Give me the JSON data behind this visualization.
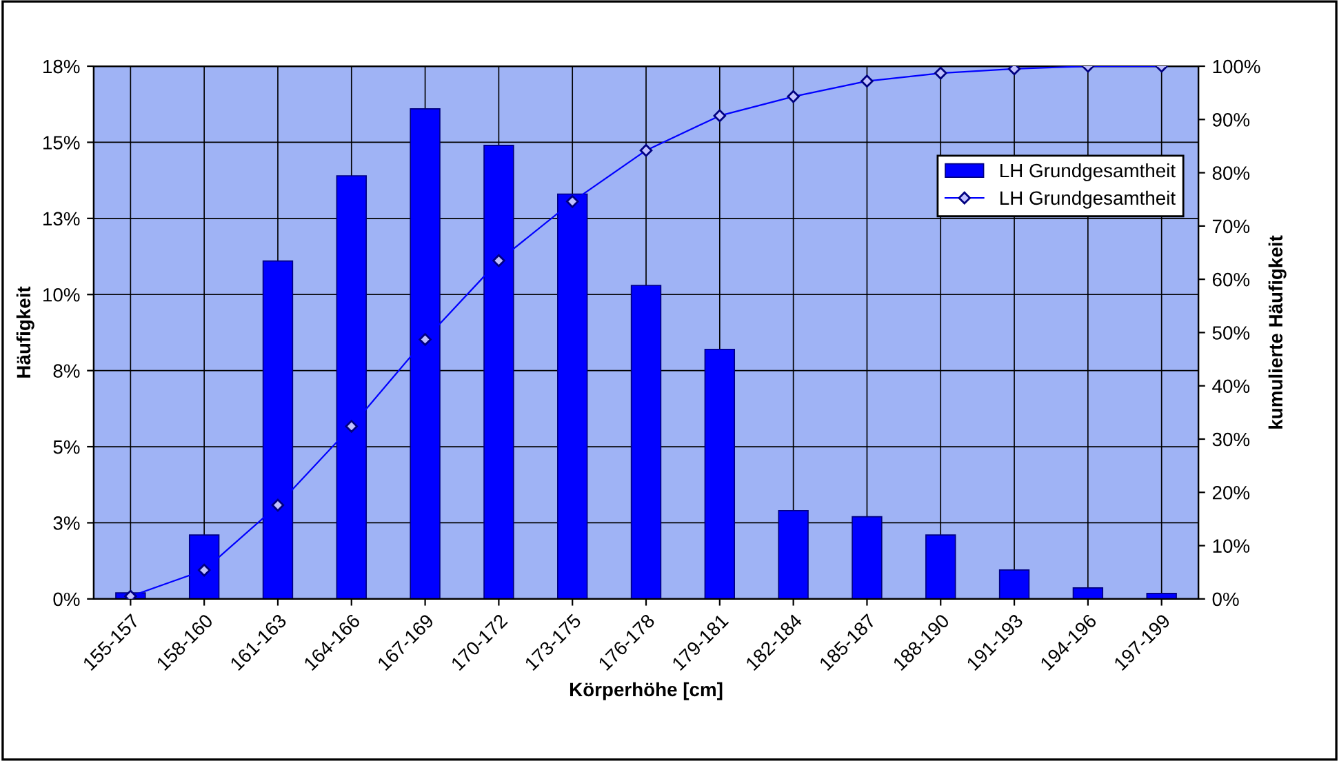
{
  "chart_data": {
    "type": "bar",
    "xlabel": "Körperhöhe [cm]",
    "ylabel": "Häufigkeit",
    "y2label": "kumulierte Häufigkeit",
    "categories": [
      "155-157",
      "158-160",
      "161-163",
      "164-166",
      "167-169",
      "170-172",
      "173-175",
      "176-178",
      "179-181",
      "182-184",
      "185-187",
      "188-190",
      "191-193",
      "194-196",
      "197-199"
    ],
    "series": [
      {
        "name": "LH Grundgesamtheit",
        "color": "#0000ff",
        "values": [
          0.2,
          2.1,
          11.1,
          13.9,
          16.1,
          14.9,
          13.3,
          10.3,
          8.2,
          2.9,
          2.7,
          2.1,
          0.95,
          0.36,
          0.18
        ]
      },
      {
        "name": "LH Grundgesamtheit",
        "type": "line",
        "axis": "y2",
        "color": "#0000ff",
        "marker": "diamond",
        "line_style": "solid",
        "values": [
          0.5,
          5.4,
          17.6,
          32.4,
          48.7,
          63.5,
          74.6,
          84.2,
          90.7,
          94.3,
          97.2,
          98.7,
          99.5,
          100,
          100
        ]
      }
    ],
    "ylim": [
      0,
      17.5
    ],
    "yticks": [
      {
        "value": 0,
        "label": "0%"
      },
      {
        "value": 2.5,
        "label": "3%"
      },
      {
        "value": 5,
        "label": "5%"
      },
      {
        "value": 7.5,
        "label": "8%"
      },
      {
        "value": 10,
        "label": "10%"
      },
      {
        "value": 12.5,
        "label": "13%"
      },
      {
        "value": 15,
        "label": "15%"
      },
      {
        "value": 17.5,
        "label": "18%"
      }
    ],
    "y2lim": [
      0,
      100
    ],
    "y2ticks": [
      {
        "value": 0,
        "label": "0%"
      },
      {
        "value": 10,
        "label": "10%"
      },
      {
        "value": 20,
        "label": "20%"
      },
      {
        "value": 30,
        "label": "30%"
      },
      {
        "value": 40,
        "label": "40%"
      },
      {
        "value": 50,
        "label": "50%"
      },
      {
        "value": 60,
        "label": "60%"
      },
      {
        "value": 70,
        "label": "70%"
      },
      {
        "value": 80,
        "label": "80%"
      },
      {
        "value": 90,
        "label": "90%"
      },
      {
        "value": 100,
        "label": "100%"
      }
    ],
    "grid": true,
    "legend": "top right"
  }
}
